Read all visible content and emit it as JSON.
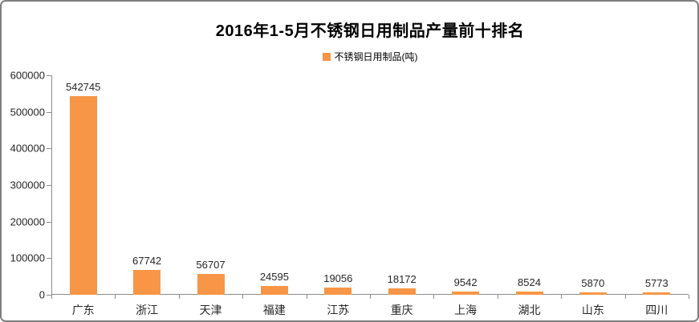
{
  "frame": {
    "background": "#ffffff",
    "border_color": "#7f7f7f"
  },
  "title": "2016年1-5月不锈钢日用制品产量前十排名",
  "legend": {
    "label": "不锈钢日用制品(吨)",
    "swatch_color": "#F79646"
  },
  "chart_data": {
    "type": "bar",
    "title": "2016年1-5月不锈钢日用制品产量前十排名",
    "legend_entries": [
      "不锈钢日用制品(吨)"
    ],
    "legend_position": "top",
    "categories": [
      "广东",
      "浙江",
      "天津",
      "福建",
      "江苏",
      "重庆",
      "上海",
      "湖北",
      "山东",
      "四川"
    ],
    "values": [
      542745,
      67742,
      56707,
      24595,
      19056,
      18172,
      9542,
      8524,
      5870,
      5773
    ],
    "data_labels": true,
    "xlabel": "",
    "ylabel": "",
    "ylim": [
      0,
      600000
    ],
    "yticks": [
      0,
      100000,
      200000,
      300000,
      400000,
      500000,
      600000
    ],
    "grid": false,
    "bar_color": "#F79646",
    "axis_color": "#8c8c8c",
    "label_color": "#262626"
  }
}
